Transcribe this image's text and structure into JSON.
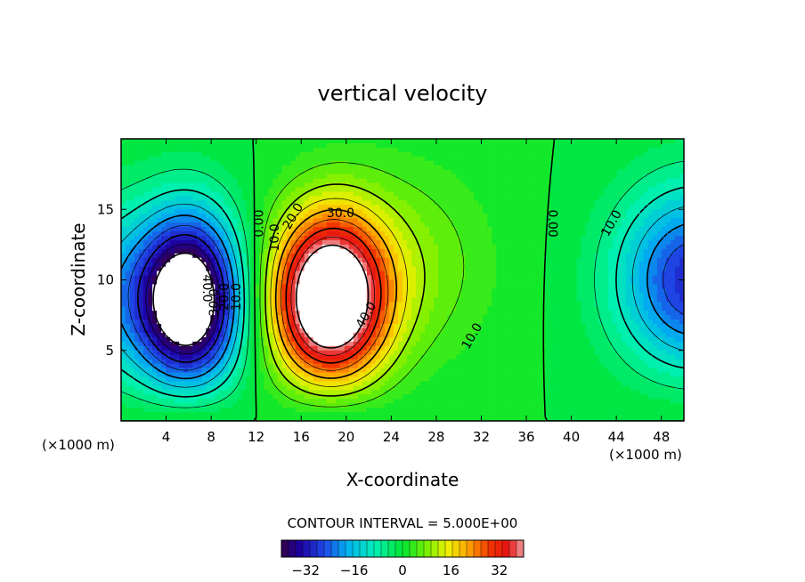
{
  "chart_data": {
    "type": "heatmap",
    "subtype": "filled contour",
    "title": "vertical velocity",
    "xlabel": "X-coordinate",
    "ylabel": "Z-coordinate",
    "x_unit_left": "(×1000 m)",
    "x_unit_right": "(×1000 m)",
    "xlim": [
      0,
      50
    ],
    "ylim": [
      0,
      20
    ],
    "x_ticks": [
      4,
      8,
      12,
      16,
      20,
      24,
      28,
      32,
      36,
      40,
      44,
      48
    ],
    "y_ticks": [
      5,
      10,
      15
    ],
    "contour_interval_text": "CONTOUR INTERVAL = 5.000E+00",
    "colorbar": {
      "min": -40,
      "max": 40,
      "ticks": [
        -32,
        -16,
        0,
        16,
        32
      ],
      "colors": [
        "#320046",
        "#1e00a0",
        "#1e46e6",
        "#00b4f0",
        "#00f0b4",
        "#00e632",
        "#78f000",
        "#f0f000",
        "#ffa000",
        "#f03200",
        "#e61414",
        "#f0a0a0"
      ]
    },
    "features": [
      {
        "name": "downdraft",
        "x": 6,
        "z": 9,
        "peak": -45
      },
      {
        "name": "updraft",
        "x": 19,
        "z": 8.5,
        "peak": 45
      },
      {
        "name": "downdraft",
        "x": 50,
        "z": 10,
        "peak": -25
      }
    ],
    "contour_labels": [
      {
        "text": "0.00",
        "x": 12.3,
        "z": 14,
        "rot": -90
      },
      {
        "text": "10.0",
        "x": 13.7,
        "z": 13,
        "rot": -90
      },
      {
        "text": "20.0",
        "x": 15.3,
        "z": 14.5,
        "rot": -60
      },
      {
        "text": "30.0",
        "x": 19.5,
        "z": 14.7,
        "rot": 0
      },
      {
        "text": "40.0",
        "x": 21.8,
        "z": 7.5,
        "rot": -60
      },
      {
        "text": "10.0",
        "x": 31.2,
        "z": 6.0,
        "rot": -60
      },
      {
        "text": "0.00",
        "x": 38.3,
        "z": 14,
        "rot": 90
      },
      {
        "text": "10.0",
        "x": 43.6,
        "z": 14,
        "rot": -60
      },
      {
        "text": "10.0",
        "x": 10.3,
        "z": 8.8,
        "rot": -90
      },
      {
        "text": "20.0",
        "x": 9.2,
        "z": 8.8,
        "rot": -90
      },
      {
        "text": "30.0",
        "x": 8.3,
        "z": 8.4,
        "rot": -90
      },
      {
        "text": "40.0",
        "x": 7.6,
        "z": 9.4,
        "rot": 90
      }
    ]
  }
}
